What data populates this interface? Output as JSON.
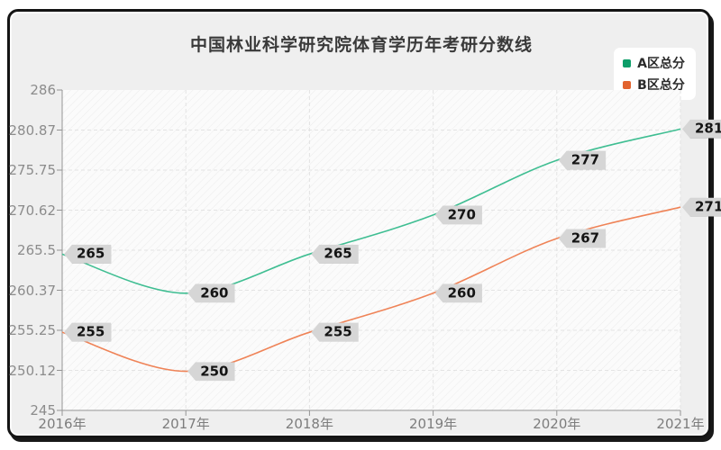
{
  "chart_data": {
    "type": "line",
    "title": "中国林业科学研究院体育学历年考研分数线",
    "x": [
      "2016年",
      "2017年",
      "2018年",
      "2019年",
      "2020年",
      "2021年"
    ],
    "series": [
      {
        "name": "A区总分",
        "legend_color": "#0d9e69",
        "line_color": "#3fbe92",
        "values": [
          265,
          260,
          265,
          270,
          277,
          281
        ]
      },
      {
        "name": "B区总分",
        "legend_color": "#e2632e",
        "line_color": "#ef8357",
        "values": [
          255,
          250,
          255,
          260,
          267,
          271
        ]
      }
    ],
    "ylim": [
      245,
      286
    ],
    "yticks": [
      245,
      250.12,
      255.25,
      260.37,
      265.5,
      270.62,
      275.75,
      280.87,
      286
    ],
    "grid": true,
    "smooth": true,
    "point_labels": true,
    "legend_position": "top-right",
    "colors": {
      "plot_background": "#fbfbfb",
      "hatch_line": "#ececec",
      "gridline": "#e3e3e3",
      "axis": "#949494",
      "tag_background": "#d6d6d6",
      "frame_background": "#efefef"
    }
  }
}
